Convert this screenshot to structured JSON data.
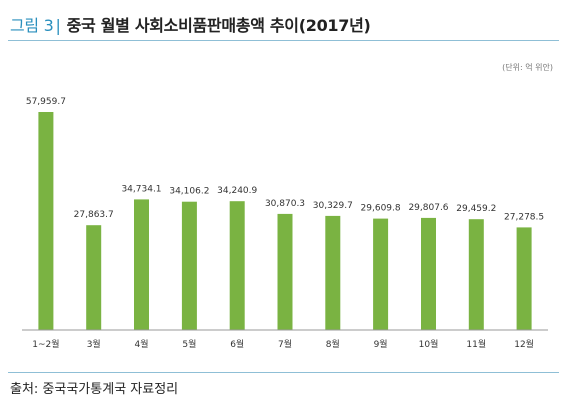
{
  "figure": {
    "label": "그림 3",
    "title": "중국 월별 사회소비품판매총액 추이(2017년)",
    "unit": "(단위: 억 위안)",
    "source": "출처: 중국국가통계국 자료정리"
  },
  "colors": {
    "bar": "#7ab342",
    "axis": "#9a9a9a",
    "label_text": "#333333",
    "accent": "#2a8fbd"
  },
  "chart_data": {
    "type": "bar",
    "title": "중국 월별 사회소비품판매총액 추이(2017년)",
    "xlabel": "",
    "ylabel": "",
    "ylim": [
      0,
      61000
    ],
    "grid": false,
    "legend": "none",
    "categories": [
      "1~2월",
      "3월",
      "4월",
      "5월",
      "6월",
      "7월",
      "8월",
      "9월",
      "10월",
      "11월",
      "12월"
    ],
    "values": [
      57959.7,
      27863.7,
      34734.1,
      34106.2,
      34240.9,
      30870.3,
      30329.7,
      29609.8,
      29807.6,
      29459.2,
      27278.5
    ],
    "value_labels": [
      "57,959.7",
      "27,863.7",
      "34,734.1",
      "34,106.2",
      "34,240.9",
      "30,870.3",
      "30,329.7",
      "29,609.8",
      "29,807.6",
      "29,459.2",
      "27,278.5"
    ]
  }
}
